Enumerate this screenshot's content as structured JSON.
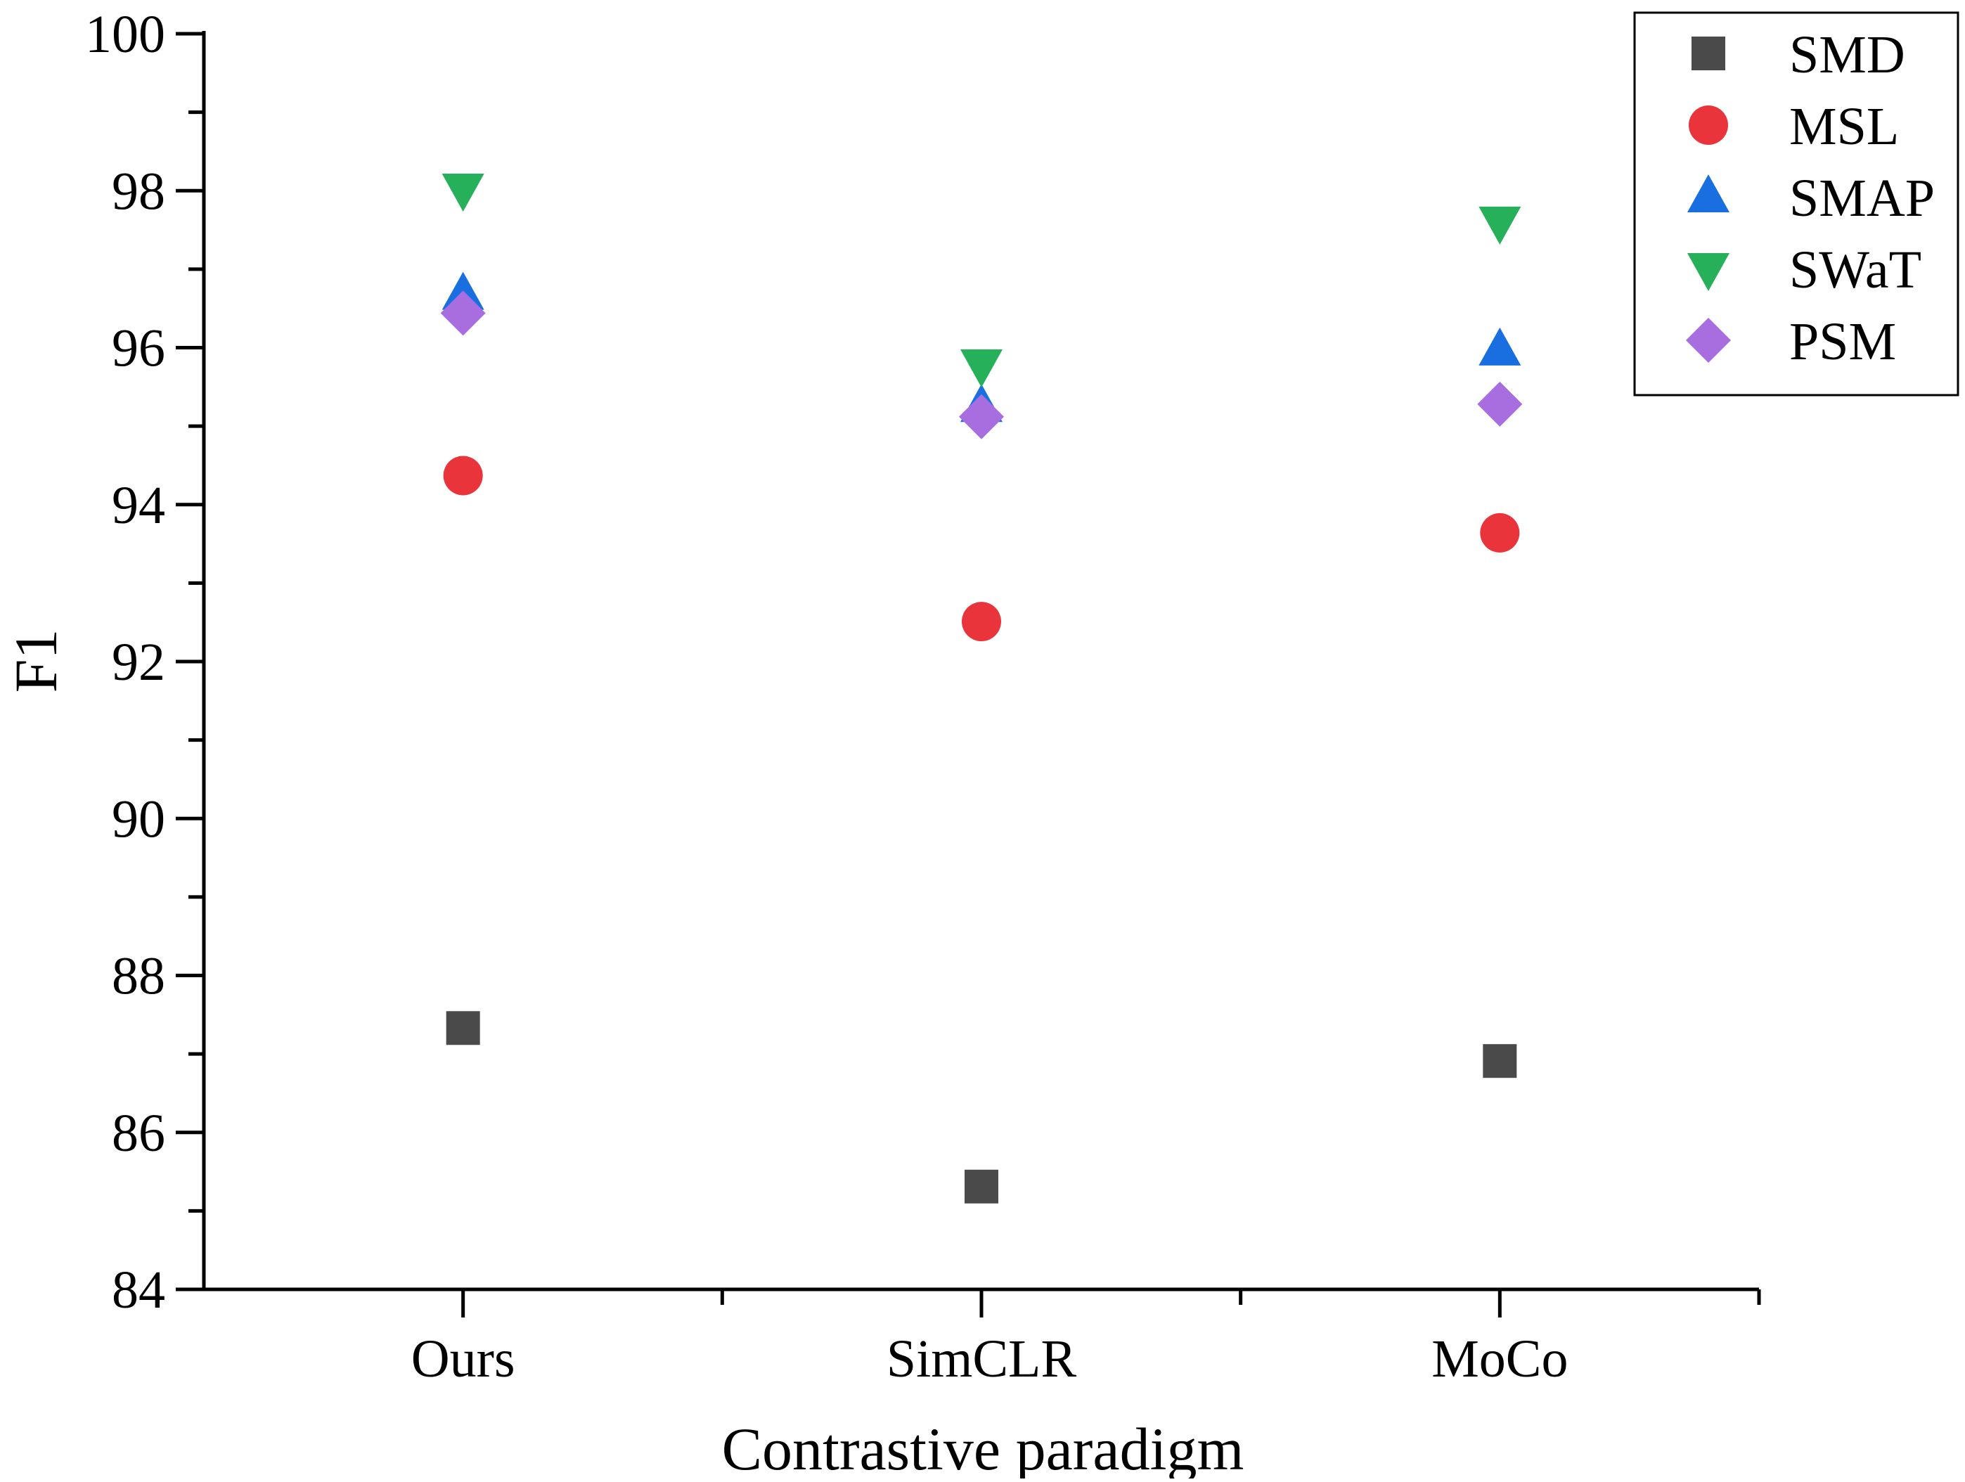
{
  "chart_data": {
    "type": "scatter",
    "title": "",
    "xlabel": "Contrastive paradigm",
    "ylabel": "F1",
    "categories": [
      "Ours",
      "SimCLR",
      "MoCo"
    ],
    "ylim": [
      84,
      100
    ],
    "yticks": [
      84,
      86,
      88,
      90,
      92,
      94,
      96,
      98,
      100
    ],
    "grid": false,
    "legend_position": "top-right",
    "series": [
      {
        "name": "SMD",
        "marker": "square",
        "color": "#4a4a4a",
        "values": [
          87.33,
          85.31,
          86.91
        ]
      },
      {
        "name": "MSL",
        "marker": "circle",
        "color": "#e8343a",
        "values": [
          94.37,
          92.51,
          93.64
        ]
      },
      {
        "name": "SMAP",
        "marker": "triangle-up",
        "color": "#1a6fe0",
        "values": [
          96.68,
          95.25,
          95.97
        ]
      },
      {
        "name": "SWaT",
        "marker": "triangle-down",
        "color": "#27b05a",
        "values": [
          98.02,
          95.78,
          97.6
        ]
      },
      {
        "name": "PSM",
        "marker": "diamond",
        "color": "#a86ee0",
        "values": [
          96.44,
          95.12,
          95.28
        ]
      }
    ]
  }
}
